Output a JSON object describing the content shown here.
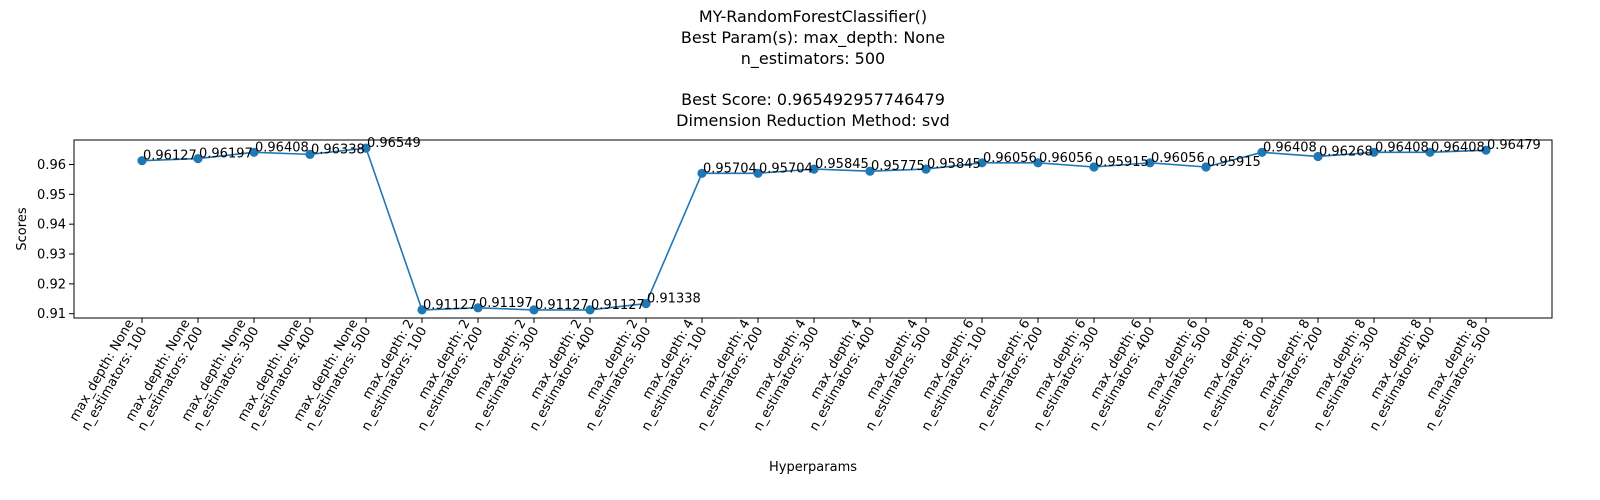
{
  "chart_data": {
    "type": "line",
    "title": [
      "MY-RandomForestClassifier()",
      "Best Param(s): max_depth: None",
      "n_estimators: 500",
      "",
      "Best Score: 0.965492957746479",
      "Dimension Reduction Method: svd"
    ],
    "xlabel": "Hyperparams",
    "ylabel": "Scores",
    "categories": [
      [
        "max_depth: None",
        "n_estimators: 100"
      ],
      [
        "max_depth: None",
        "n_estimators: 200"
      ],
      [
        "max_depth: None",
        "n_estimators: 300"
      ],
      [
        "max_depth: None",
        "n_estimators: 400"
      ],
      [
        "max_depth: None",
        "n_estimators: 500"
      ],
      [
        "max_depth: 2",
        "n_estimators: 100"
      ],
      [
        "max_depth: 2",
        "n_estimators: 200"
      ],
      [
        "max_depth: 2",
        "n_estimators: 300"
      ],
      [
        "max_depth: 2",
        "n_estimators: 400"
      ],
      [
        "max_depth: 2",
        "n_estimators: 500"
      ],
      [
        "max_depth: 4",
        "n_estimators: 100"
      ],
      [
        "max_depth: 4",
        "n_estimators: 200"
      ],
      [
        "max_depth: 4",
        "n_estimators: 300"
      ],
      [
        "max_depth: 4",
        "n_estimators: 400"
      ],
      [
        "max_depth: 4",
        "n_estimators: 500"
      ],
      [
        "max_depth: 6",
        "n_estimators: 100"
      ],
      [
        "max_depth: 6",
        "n_estimators: 200"
      ],
      [
        "max_depth: 6",
        "n_estimators: 300"
      ],
      [
        "max_depth: 6",
        "n_estimators: 400"
      ],
      [
        "max_depth: 6",
        "n_estimators: 500"
      ],
      [
        "max_depth: 8",
        "n_estimators: 100"
      ],
      [
        "max_depth: 8",
        "n_estimators: 200"
      ],
      [
        "max_depth: 8",
        "n_estimators: 300"
      ],
      [
        "max_depth: 8",
        "n_estimators: 400"
      ],
      [
        "max_depth: 8",
        "n_estimators: 500"
      ]
    ],
    "values": [
      0.96127,
      0.96197,
      0.96408,
      0.96338,
      0.96549,
      0.91127,
      0.91197,
      0.91127,
      0.91127,
      0.91338,
      0.95704,
      0.95704,
      0.95845,
      0.95775,
      0.95845,
      0.96056,
      0.96056,
      0.95915,
      0.96056,
      0.95915,
      0.96408,
      0.96268,
      0.96408,
      0.96408,
      0.96479
    ],
    "data_labels": [
      "0.96127",
      "0.96197",
      "0.96408",
      "0.96338",
      "0.96549",
      "0.91127",
      "0.91197",
      "0.91127",
      "0.91127",
      "0.91338",
      "0.95704",
      "0.95704",
      "0.95845",
      "0.95775",
      "0.95845",
      "0.96056",
      "0.96056",
      "0.95915",
      "0.96056",
      "0.95915",
      "0.96408",
      "0.96268",
      "0.96408",
      "0.96408",
      "0.96479"
    ],
    "yticks": [
      0.91,
      0.92,
      0.93,
      0.94,
      0.95,
      0.96
    ],
    "ytick_labels": [
      "0.91",
      "0.92",
      "0.93",
      "0.94",
      "0.95",
      "0.96"
    ],
    "ylim": [
      0.90856,
      0.9682
    ],
    "grid": false,
    "series_color": "#1f77b4"
  }
}
